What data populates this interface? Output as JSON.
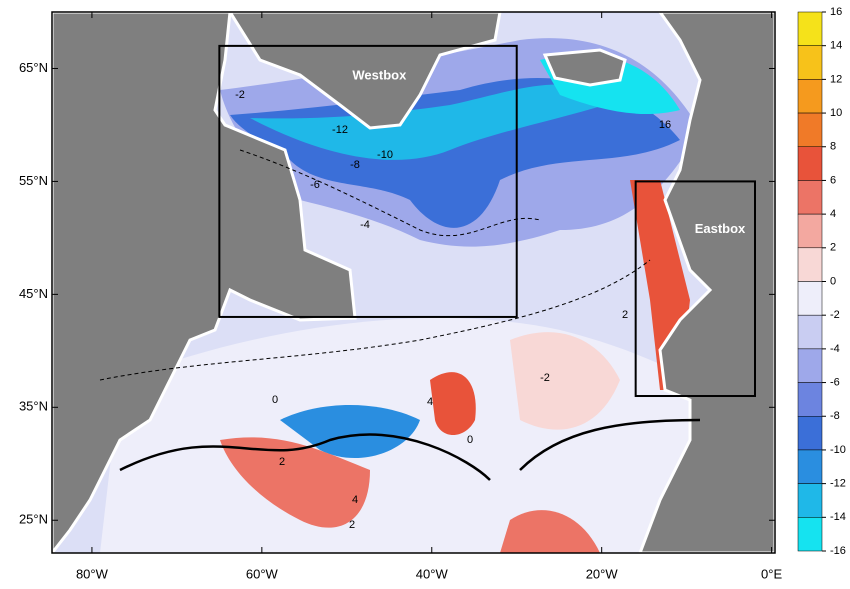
{
  "map": {
    "lon_ticks": [
      {
        "value": -80,
        "label": "80°W"
      },
      {
        "value": -60,
        "label": "60°W"
      },
      {
        "value": -40,
        "label": "40°W"
      },
      {
        "value": -20,
        "label": "20°W"
      },
      {
        "value": 0,
        "label": "0°E"
      }
    ],
    "lat_ticks": [
      {
        "value": 65,
        "label": "65°N"
      },
      {
        "value": 55,
        "label": "55°N"
      },
      {
        "value": 45,
        "label": "45°N"
      },
      {
        "value": 35,
        "label": "35°N"
      },
      {
        "value": 25,
        "label": "25°N"
      }
    ],
    "xlim": [
      -84.7,
      0.4
    ],
    "ylim": [
      22.1,
      70
    ],
    "boxes": [
      {
        "label": "Westbox",
        "lon": [
          -65,
          -30
        ],
        "lat": [
          43,
          67
        ]
      },
      {
        "label": "Eastbox",
        "lon": [
          -16,
          2
        ],
        "lat": [
          36,
          55
        ]
      }
    ],
    "contour_labels": [
      -2,
      -12,
      -10,
      -8,
      -6,
      -4,
      16,
      0,
      2,
      4,
      2,
      0,
      -2,
      4,
      2
    ]
  },
  "colorbar": {
    "ticks": [
      16,
      14,
      12,
      10,
      8,
      6,
      4,
      2,
      0,
      -2,
      -4,
      -6,
      -8,
      -10,
      -12,
      -14,
      -16
    ],
    "colors": [
      "#f5e21a",
      "#f7c21a",
      "#f59a1e",
      "#f07a28",
      "#e8533a",
      "#ec7466",
      "#f3a8a0",
      "#f8d8d6",
      "#eeeefa",
      "#c9cdf2",
      "#9ea8ea",
      "#6c84e0",
      "#3b6fd8",
      "#2a8ee0",
      "#1fb8e8",
      "#15e3f0"
    ]
  }
}
